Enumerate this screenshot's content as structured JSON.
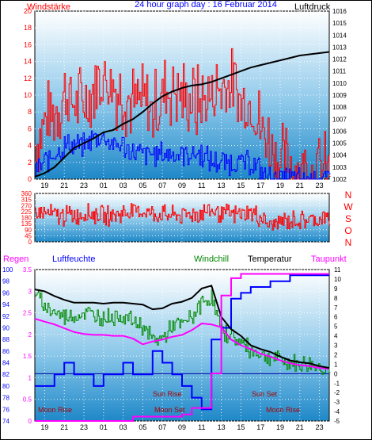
{
  "header": {
    "left": "Windstärke",
    "center": "24 hour graph day : 16 Februar 2014",
    "right": "Luftdruck"
  },
  "colors": {
    "wind_gust": "#ff0000",
    "wind_avg": "#0000ff",
    "pressure": "#000000",
    "humidity": "#0000ff",
    "windchill": "#008800",
    "temperature": "#000000",
    "dewpoint": "#ff00ff",
    "rain": "#ff00ff",
    "bg_top": "#ffffff",
    "bg_bottom": "#1e88c8"
  },
  "time_ticks": [
    "19",
    "21",
    "23",
    "01",
    "03",
    "05",
    "07",
    "09",
    "11",
    "13",
    "15",
    "17",
    "19",
    "21",
    "23"
  ],
  "chart_data": [
    {
      "id": "wind_pressure",
      "type": "line",
      "x": "hour of day (from 18:00 previous day to 24:00)",
      "y_left": {
        "ylim": [
          0,
          20
        ],
        "ticks": [
          "0",
          "2",
          "4",
          "6",
          "8",
          "10",
          "12",
          "14",
          "16",
          "18",
          "20"
        ]
      },
      "y_right": {
        "ylim": [
          1002,
          1016
        ],
        "ticks": [
          "1002",
          "1003",
          "1004",
          "1005",
          "1006",
          "1007",
          "1008",
          "1009",
          "1010",
          "1011",
          "1012",
          "1013",
          "1014",
          "1015",
          "1016"
        ]
      },
      "series": [
        {
          "name": "Windstärke",
          "axis": "left",
          "shape": "spiky",
          "x": [
            18,
            19,
            20,
            21,
            22,
            23,
            24,
            25,
            26,
            27,
            28,
            29,
            30,
            31,
            32,
            33,
            34,
            35,
            36,
            37,
            38,
            39,
            40,
            41,
            42,
            43,
            44,
            45,
            46,
            47,
            48
          ],
          "values": [
            4,
            7,
            8,
            10,
            9,
            9,
            11,
            12,
            11,
            10,
            9,
            9,
            8,
            10,
            11,
            10,
            9,
            9,
            10,
            11,
            11,
            9,
            9,
            6,
            4,
            2,
            2,
            1,
            1,
            1,
            1
          ]
        },
        {
          "name": "Windmittel",
          "axis": "left",
          "shape": "spiky",
          "x": [
            18,
            19,
            20,
            21,
            22,
            23,
            24,
            25,
            26,
            27,
            28,
            29,
            30,
            31,
            32,
            33,
            34,
            35,
            36,
            37,
            38,
            39,
            40,
            41,
            42,
            43,
            44,
            45,
            46,
            47,
            48
          ],
          "values": [
            1,
            2,
            3,
            4,
            4,
            4,
            5,
            5,
            4,
            4,
            3,
            3,
            3,
            3,
            3,
            3,
            3,
            3,
            2,
            2,
            2,
            2,
            2,
            1,
            0,
            0,
            0,
            0,
            0,
            0,
            0
          ]
        },
        {
          "name": "Luftdruck",
          "axis": "right",
          "x": [
            18,
            19,
            20,
            21,
            22,
            23,
            24,
            25,
            26,
            27,
            28,
            29,
            30,
            31,
            32,
            33,
            34,
            35,
            36,
            37,
            38,
            39,
            40,
            41,
            42,
            43,
            44,
            45,
            46,
            47,
            48
          ],
          "values": [
            1002.2,
            1002.5,
            1003.0,
            1003.8,
            1004.6,
            1005.0,
            1005.4,
            1005.9,
            1006.1,
            1006.6,
            1007.0,
            1007.6,
            1008.3,
            1008.9,
            1009.3,
            1009.6,
            1009.8,
            1009.9,
            1010.1,
            1010.4,
            1010.7,
            1011.0,
            1011.3,
            1011.5,
            1011.7,
            1011.9,
            1012.1,
            1012.3,
            1012.4,
            1012.5,
            1012.6
          ]
        }
      ]
    },
    {
      "id": "wind_direction",
      "type": "line",
      "x": "hour of day",
      "y_left": {
        "ylim": [
          0,
          360
        ],
        "ticks": [
          "0",
          "45",
          "90",
          "135",
          "180",
          "225",
          "270",
          "315",
          "360"
        ]
      },
      "compass": [
        "N",
        "W",
        "S",
        "O",
        "N"
      ],
      "series": [
        {
          "name": "Windrichtung",
          "shape": "oscillating",
          "x": [
            18,
            19,
            20,
            21,
            22,
            23,
            24,
            25,
            26,
            27,
            28,
            29,
            30,
            31,
            32,
            33,
            34,
            35,
            36,
            37,
            38,
            39,
            40,
            41,
            42,
            43,
            44,
            45,
            46,
            47,
            48
          ],
          "values": [
            220,
            210,
            200,
            190,
            200,
            210,
            205,
            190,
            200,
            215,
            230,
            225,
            210,
            200,
            195,
            200,
            210,
            220,
            230,
            215,
            200,
            205,
            220,
            180,
            120,
            150,
            160,
            160,
            165,
            170,
            175
          ]
        }
      ]
    },
    {
      "id": "temp_humidity",
      "type": "line",
      "x": "hour of day",
      "y_left_rain": {
        "ylim": [
          0,
          3.5
        ],
        "ticks": [
          "0",
          "0.5",
          "1",
          "1.5",
          "2",
          "2.5",
          "3",
          "3.5"
        ]
      },
      "y_left_humidity": {
        "ylim": [
          74,
          100
        ],
        "ticks": [
          "74",
          "76",
          "78",
          "80",
          "82",
          "84",
          "86",
          "88",
          "90",
          "92",
          "94",
          "96",
          "98",
          "100"
        ]
      },
      "y_right": {
        "ylim": [
          -5,
          11
        ],
        "ticks": [
          "-5",
          "-4",
          "-3",
          "-2",
          "-1",
          "0",
          "1",
          "2",
          "3",
          "4",
          "5",
          "6",
          "7",
          "8",
          "9",
          "10",
          "11"
        ]
      },
      "labels": {
        "rain": "Regen",
        "humidity": "Luftfeuchte",
        "windchill": "Windchill",
        "temperature": "Temperatur",
        "dewpoint": "Taupunkt"
      },
      "annotations": [
        "Moon Rise",
        "Sun Rise",
        "Moon Set",
        "Sun Set",
        "Moon Rise"
      ],
      "series": [
        {
          "name": "Temperatur",
          "axis": "right",
          "x": [
            18,
            19,
            20,
            21,
            22,
            23,
            24,
            25,
            26,
            27,
            28,
            29,
            30,
            31,
            32,
            33,
            34,
            35,
            36,
            37,
            38,
            39,
            40,
            41,
            42,
            43,
            44,
            45,
            46,
            47,
            48
          ],
          "values": [
            8.9,
            8.7,
            8.2,
            7.8,
            7.5,
            7.5,
            7.5,
            7.4,
            7.5,
            7.5,
            7.4,
            7.3,
            6.8,
            6.9,
            7.4,
            7.6,
            8.0,
            9.0,
            9.3,
            6.0,
            4.7,
            4.0,
            3.0,
            2.6,
            2.3,
            1.8,
            1.4,
            1.2,
            1.1,
            0.8,
            0.6
          ]
        },
        {
          "name": "Windchill",
          "axis": "right",
          "shape": "spiky",
          "x": [
            18,
            19,
            20,
            21,
            22,
            23,
            24,
            25,
            26,
            27,
            28,
            29,
            30,
            31,
            32,
            33,
            34,
            35,
            36,
            37,
            38,
            39,
            40,
            41,
            42,
            43,
            44,
            45,
            46,
            47,
            48
          ],
          "values": [
            8.5,
            7.0,
            6.5,
            6.0,
            6.0,
            6.5,
            6.2,
            6.0,
            6.0,
            6.2,
            5.5,
            5.0,
            3.5,
            3.8,
            5.0,
            5.2,
            6.0,
            7.5,
            8.0,
            4.5,
            4.0,
            3.2,
            2.5,
            2.0,
            1.8,
            1.5,
            1.2,
            1.0,
            1.0,
            0.7,
            0.5
          ]
        },
        {
          "name": "Taupunkt",
          "axis": "right",
          "x": [
            18,
            19,
            20,
            21,
            22,
            23,
            24,
            25,
            26,
            27,
            28,
            29,
            30,
            31,
            32,
            33,
            34,
            35,
            36,
            37,
            38,
            39,
            40,
            41,
            42,
            43,
            44,
            45,
            46,
            47,
            48
          ],
          "values": [
            5.8,
            5.5,
            5.2,
            4.8,
            4.4,
            4.2,
            4.1,
            4.1,
            4.0,
            4.0,
            3.7,
            3.1,
            3.4,
            3.6,
            3.9,
            4.1,
            4.6,
            5.3,
            5.2,
            4.9,
            3.6,
            3.0,
            2.6,
            2.1,
            1.8,
            1.4,
            1.1,
            0.9,
            0.8,
            0.6,
            0.5
          ]
        },
        {
          "name": "Luftfeuchte",
          "axis": "humidity",
          "shape": "stepped",
          "x": [
            18,
            19,
            20,
            21,
            22,
            23,
            24,
            25,
            26,
            27,
            28,
            29,
            30,
            31,
            32,
            33,
            34,
            35,
            36,
            37,
            38,
            39,
            40,
            41,
            42,
            43,
            44,
            45,
            46,
            47,
            48
          ],
          "values": [
            80,
            80,
            82,
            84,
            82,
            82,
            80,
            82,
            82,
            84,
            82,
            82,
            86,
            84,
            82,
            80,
            78,
            76,
            88,
            90,
            95,
            96,
            97,
            97,
            98,
            98,
            99,
            99,
            99,
            99,
            99
          ]
        },
        {
          "name": "Regen",
          "axis": "rain",
          "shape": "stepped",
          "x": [
            18,
            19,
            20,
            21,
            22,
            23,
            24,
            25,
            26,
            27,
            28,
            29,
            30,
            31,
            32,
            33,
            34,
            35,
            36,
            37,
            38,
            39,
            40,
            41,
            42,
            43,
            44,
            45,
            46,
            47,
            48
          ],
          "values": [
            0,
            0,
            0,
            0,
            0,
            0,
            0,
            0,
            0,
            0,
            0.1,
            0.1,
            0.1,
            0.1,
            0.1,
            0.15,
            0.3,
            0.3,
            1.1,
            2.9,
            3.3,
            3.4,
            3.4,
            3.4,
            3.4,
            3.4,
            3.4,
            3.4,
            3.4,
            3.4,
            3.4
          ]
        }
      ]
    }
  ]
}
